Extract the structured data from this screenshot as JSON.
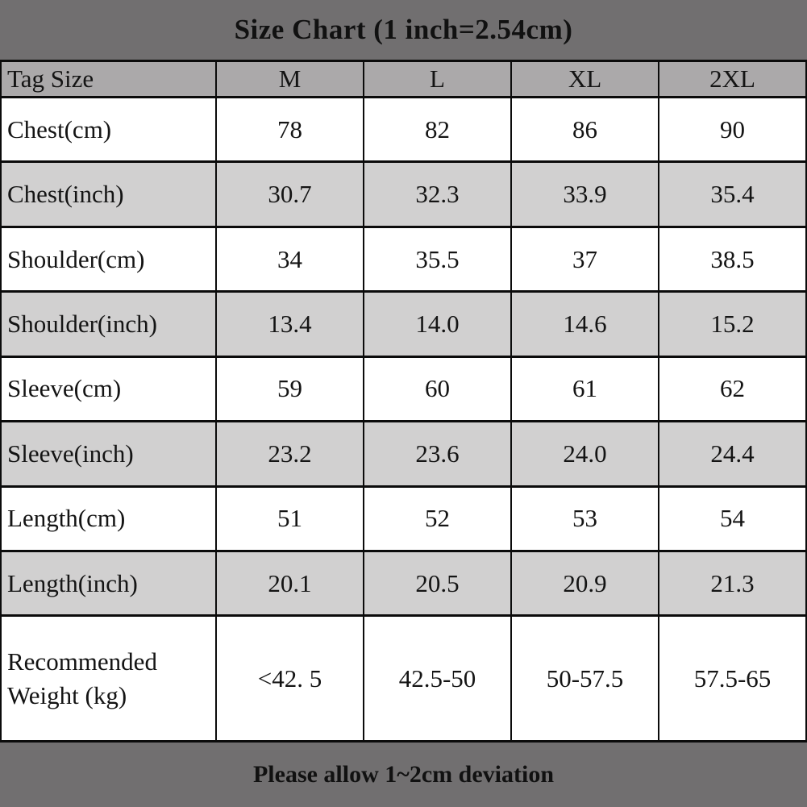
{
  "title": "Size Chart (1 inch=2.54cm)",
  "footer_note": "Please allow 1~2cm deviation",
  "colors": {
    "band_background": "#716f70",
    "header_row_background": "#aba9aa",
    "alt_row_background": "#d1d0d0",
    "row_background": "#ffffff",
    "border": "#0b0b0b",
    "text": "#141414"
  },
  "chart_data": {
    "type": "table",
    "title": "Size Chart (1 inch=2.54cm)",
    "note": "Please allow 1~2cm deviation",
    "columns": [
      "Tag Size",
      "M",
      "L",
      "XL",
      "2XL"
    ],
    "rows": [
      {
        "label": "Chest(cm)",
        "values": [
          "78",
          "82",
          "86",
          "90"
        ]
      },
      {
        "label": "Chest(inch)",
        "values": [
          "30.7",
          "32.3",
          "33.9",
          "35.4"
        ]
      },
      {
        "label": "Shoulder(cm)",
        "values": [
          "34",
          "35.5",
          "37",
          "38.5"
        ]
      },
      {
        "label": "Shoulder(inch)",
        "values": [
          "13.4",
          "14.0",
          "14.6",
          "15.2"
        ]
      },
      {
        "label": "Sleeve(cm)",
        "values": [
          "59",
          "60",
          "61",
          "62"
        ]
      },
      {
        "label": "Sleeve(inch)",
        "values": [
          "23.2",
          "23.6",
          "24.0",
          "24.4"
        ]
      },
      {
        "label": "Length(cm)",
        "values": [
          "51",
          "52",
          "53",
          "54"
        ]
      },
      {
        "label": "Length(inch)",
        "values": [
          "20.1",
          "20.5",
          "20.9",
          "21.3"
        ]
      },
      {
        "label": "Recommended Weight (kg)",
        "values": [
          "<42. 5",
          "42.5-50",
          "50-57.5",
          "57.5-65"
        ]
      }
    ]
  }
}
